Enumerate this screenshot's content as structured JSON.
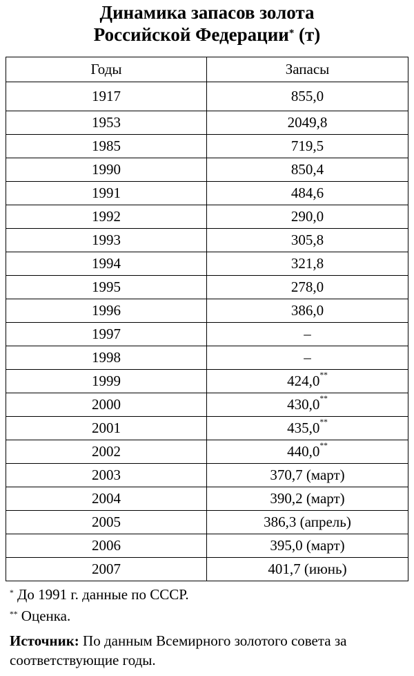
{
  "header": {
    "title_line1": "Динамика запасов золота",
    "title_line2": "Российской Федерации",
    "title_mark": "*",
    "title_unit": "(т)"
  },
  "table": {
    "columns": [
      "Годы",
      "Запасы"
    ],
    "rows": [
      {
        "year": "1917",
        "value": "855,0"
      },
      {
        "year": "1953",
        "value": "2049,8"
      },
      {
        "year": "1985",
        "value": "719,5"
      },
      {
        "year": "1990",
        "value": "850,4"
      },
      {
        "year": "1991",
        "value": "484,6"
      },
      {
        "year": "1992",
        "value": "290,0"
      },
      {
        "year": "1993",
        "value": "305,8"
      },
      {
        "year": "1994",
        "value": "321,8"
      },
      {
        "year": "1995",
        "value": "278,0"
      },
      {
        "year": "1996",
        "value": "386,0"
      },
      {
        "year": "1997",
        "value": "–"
      },
      {
        "year": "1998",
        "value": "–"
      },
      {
        "year": "1999",
        "value": "424,0",
        "mark": "**"
      },
      {
        "year": "2000",
        "value": "430,0",
        "mark": "**"
      },
      {
        "year": "2001",
        "value": "435,0",
        "mark": "**"
      },
      {
        "year": "2002",
        "value": "440,0",
        "mark": "**"
      },
      {
        "year": "2003",
        "value": "370,7 (март)"
      },
      {
        "year": "2004",
        "value": "390,2 (март)"
      },
      {
        "year": "2005",
        "value": "386,3 (апрель)"
      },
      {
        "year": "2006",
        "value": "395,0 (март)"
      },
      {
        "year": "2007",
        "value": "401,7 (июнь)"
      }
    ]
  },
  "footnotes": [
    {
      "mark": "*",
      "text": "До 1991 г. данные по СССР."
    },
    {
      "mark": "**",
      "text": "Оценка."
    }
  ],
  "source": {
    "label": "Источник:",
    "text": "По данным Всемирного золотого совета за соответствующие годы."
  }
}
